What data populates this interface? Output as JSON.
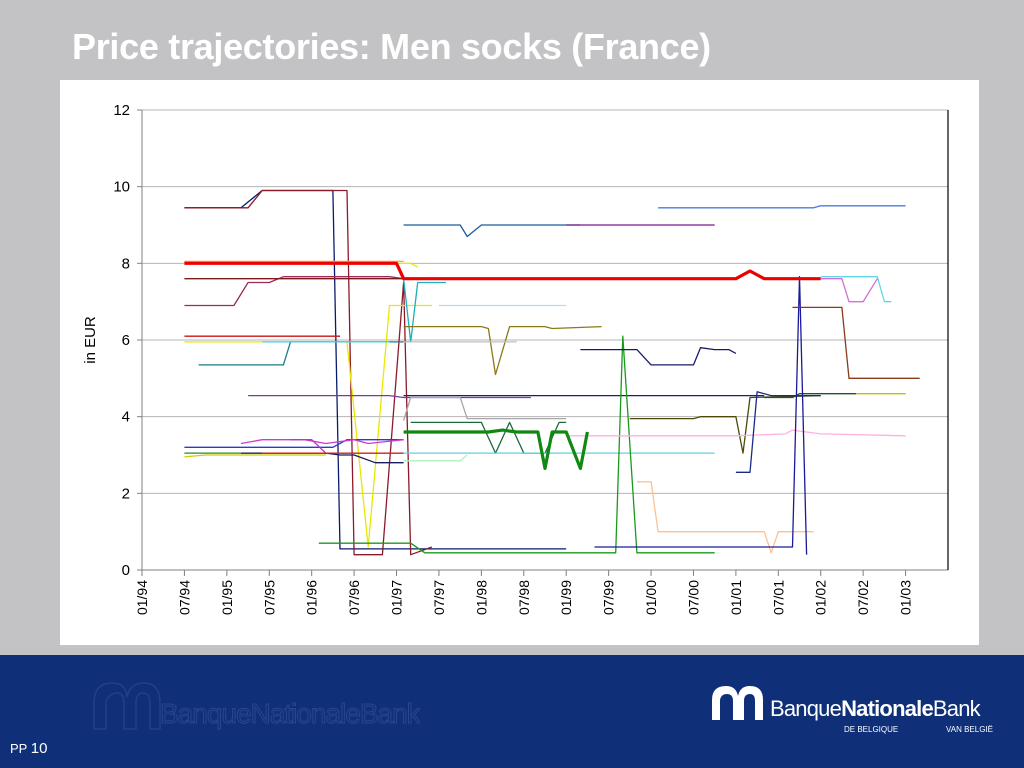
{
  "slide": {
    "title": "Price trajectories: Men socks (France)",
    "page_prefix": "PP",
    "page_number": "10"
  },
  "logo": {
    "word1": "Banque",
    "word2": "Nationale",
    "word3": "Bank",
    "sub_left": "DE BELGIQUE",
    "sub_right": "VAN BELGIË"
  },
  "chart_data": {
    "type": "line",
    "xlabel": "",
    "ylabel": "in EUR",
    "ylim": [
      0,
      12
    ],
    "yticks": [
      0,
      2,
      4,
      6,
      8,
      10,
      12
    ],
    "xlim": [
      "1994-01",
      "2003-07"
    ],
    "xticks": [
      "01/94",
      "07/94",
      "01/95",
      "07/95",
      "01/96",
      "07/96",
      "01/97",
      "07/97",
      "01/98",
      "07/98",
      "01/99",
      "07/99",
      "01/00",
      "07/00",
      "01/01",
      "07/01",
      "01/02",
      "07/02",
      "01/03"
    ],
    "grid": "horizontal",
    "legend": "none",
    "series": [
      {
        "color": "#0a1a6e",
        "width": 1.3,
        "points": [
          [
            "1994-07",
            9.45
          ],
          [
            "1995-03",
            9.45
          ],
          [
            "1995-06",
            9.9
          ],
          [
            "1996-04",
            9.9
          ],
          [
            "1996-05",
            0.55
          ],
          [
            "1999-01",
            0.55
          ]
        ]
      },
      {
        "color": "#8b1a2a",
        "width": 1.3,
        "points": [
          [
            "1994-07",
            9.45
          ],
          [
            "1995-04",
            9.45
          ],
          [
            "1995-06",
            9.9
          ],
          [
            "1996-06",
            9.9
          ],
          [
            "1996-07",
            0.4
          ],
          [
            "1996-11",
            0.4
          ],
          [
            "1997-02",
            7.5
          ],
          [
            "1997-03",
            0.4
          ],
          [
            "1997-06",
            0.6
          ]
        ]
      },
      {
        "color": "#9b2a5a",
        "width": 1.3,
        "points": [
          [
            "1994-07",
            6.9
          ],
          [
            "1995-02",
            6.9
          ],
          [
            "1995-04",
            7.5
          ],
          [
            "1995-07",
            7.5
          ],
          [
            "1995-09",
            7.65
          ],
          [
            "1996-12",
            7.65
          ],
          [
            "1997-02",
            7.6
          ]
        ]
      },
      {
        "color": "#7a1a1a",
        "width": 1.3,
        "points": [
          [
            "1994-07",
            7.6
          ],
          [
            "1997-03",
            7.6
          ]
        ]
      },
      {
        "color": "#e9e900",
        "width": 1.3,
        "points": [
          [
            "1994-07",
            8.0
          ],
          [
            "1997-03",
            8.0
          ],
          [
            "1997-04",
            7.9
          ]
        ]
      },
      {
        "color": "#ffa040",
        "width": 1.3,
        "points": [
          [
            "1994-07",
            8.05
          ],
          [
            "1997-02",
            8.05
          ]
        ]
      },
      {
        "color": "#cc1515",
        "width": 1.3,
        "points": [
          [
            "1994-07",
            6.1
          ],
          [
            "1996-05",
            6.1
          ]
        ]
      },
      {
        "color": "#e9e900",
        "width": 1.3,
        "points": [
          [
            "1994-07",
            5.95
          ],
          [
            "1996-06",
            5.95
          ],
          [
            "1996-09",
            0.6
          ],
          [
            "1996-12",
            6.9
          ],
          [
            "1997-06",
            6.9
          ]
        ]
      },
      {
        "color": "#1a7a8a",
        "width": 1.3,
        "points": [
          [
            "1994-09",
            5.35
          ],
          [
            "1995-09",
            5.35
          ],
          [
            "1995-10",
            5.95
          ],
          [
            "1997-03",
            5.95
          ]
        ]
      },
      {
        "color": "#4ad0e0",
        "width": 1.3,
        "points": [
          [
            "1995-06",
            5.95
          ],
          [
            "1996-12",
            5.95
          ]
        ]
      },
      {
        "color": "#2a3ad0",
        "width": 1.3,
        "points": [
          [
            "1994-07",
            3.2
          ],
          [
            "1996-04",
            3.2
          ],
          [
            "1996-06",
            3.4
          ],
          [
            "1997-02",
            3.4
          ]
        ]
      },
      {
        "color": "#cc3ad0",
        "width": 1.3,
        "points": [
          [
            "1995-03",
            3.3
          ],
          [
            "1995-06",
            3.4
          ],
          [
            "1995-12",
            3.4
          ],
          [
            "1996-03",
            3.3
          ],
          [
            "1996-07",
            3.4
          ],
          [
            "1996-09",
            3.3
          ],
          [
            "1997-02",
            3.4
          ]
        ]
      },
      {
        "color": "#bb33cc",
        "width": 1.3,
        "points": [
          [
            "1995-10",
            3.4
          ],
          [
            "1996-01",
            3.4
          ],
          [
            "1996-03",
            3.05
          ]
        ]
      },
      {
        "color": "#cfcf00",
        "width": 1.3,
        "points": [
          [
            "1994-07",
            2.95
          ],
          [
            "1994-10",
            3.0
          ],
          [
            "1996-03",
            3.0
          ]
        ]
      },
      {
        "color": "#2a8a2a",
        "width": 1.3,
        "points": [
          [
            "1994-07",
            3.05
          ],
          [
            "1997-02",
            3.05
          ]
        ]
      },
      {
        "color": "#1a1a5a",
        "width": 1.3,
        "points": [
          [
            "1995-03",
            3.05
          ],
          [
            "1996-03",
            3.05
          ],
          [
            "1996-05",
            3.0
          ],
          [
            "1996-07",
            3.0
          ],
          [
            "1996-10",
            2.8
          ],
          [
            "1997-02",
            2.8
          ]
        ]
      },
      {
        "color": "#cc2222",
        "width": 1.3,
        "points": [
          [
            "1995-06",
            3.05
          ],
          [
            "1997-02",
            3.05
          ]
        ]
      },
      {
        "color": "#7a3a9a",
        "width": 1.3,
        "points": [
          [
            "1995-04",
            4.55
          ],
          [
            "1996-12",
            4.55
          ],
          [
            "1997-02",
            4.5
          ],
          [
            "1998-08",
            4.5
          ]
        ]
      },
      {
        "color": "#a8a8a8",
        "width": 1.3,
        "points": [
          [
            "1997-02",
            3.9
          ],
          [
            "1997-03",
            4.5
          ],
          [
            "1997-10",
            4.5
          ],
          [
            "1997-11",
            3.95
          ],
          [
            "1999-01",
            3.95
          ]
        ]
      },
      {
        "color": "#1a1a8a",
        "width": 1.3,
        "points": [
          [
            "1997-02",
            4.55
          ],
          [
            "2000-12",
            4.55
          ],
          [
            "2001-02",
            4.55
          ],
          [
            "2001-05",
            4.55
          ]
        ]
      },
      {
        "color": "#1a5aa0",
        "width": 1.3,
        "points": [
          [
            "1997-02",
            9.0
          ],
          [
            "1997-10",
            9.0
          ],
          [
            "1997-11",
            8.7
          ],
          [
            "1998-01",
            9.0
          ],
          [
            "1999-03",
            9.0
          ]
        ]
      },
      {
        "color": "#7a1a8a",
        "width": 1.3,
        "points": [
          [
            "1999-01",
            9.0
          ],
          [
            "2000-10",
            9.0
          ]
        ]
      },
      {
        "color": "#4a7ae0",
        "width": 1.3,
        "points": [
          [
            "2000-02",
            9.45
          ],
          [
            "2001-12",
            9.45
          ],
          [
            "2002-01",
            9.5
          ],
          [
            "2003-01",
            9.5
          ]
        ]
      },
      {
        "color": "#1ab0c0",
        "width": 1.3,
        "points": [
          [
            "1997-02",
            7.6
          ],
          [
            "1997-03",
            5.95
          ],
          [
            "1997-04",
            7.5
          ],
          [
            "1997-08",
            7.5
          ]
        ]
      },
      {
        "color": "#b0e0f0",
        "width": 1.3,
        "points": [
          [
            "1997-07",
            6.9
          ],
          [
            "1998-06",
            6.9
          ],
          [
            "1999-01",
            6.9
          ]
        ]
      },
      {
        "color": "#8a7a1a",
        "width": 1.3,
        "points": [
          [
            "1997-02",
            6.35
          ],
          [
            "1998-01",
            6.35
          ],
          [
            "1998-02",
            6.3
          ],
          [
            "1998-03",
            5.1
          ],
          [
            "1998-05",
            6.35
          ],
          [
            "1998-10",
            6.35
          ],
          [
            "1998-11",
            6.3
          ],
          [
            "1999-06",
            6.35
          ]
        ]
      },
      {
        "color": "#c0c0c0",
        "width": 1.3,
        "points": [
          [
            "1997-02",
            5.95
          ],
          [
            "1998-06",
            5.95
          ]
        ]
      },
      {
        "color": "#1a6a3a",
        "width": 1.3,
        "points": [
          [
            "1997-03",
            3.85
          ],
          [
            "1998-01",
            3.85
          ],
          [
            "1998-03",
            3.05
          ],
          [
            "1998-05",
            3.85
          ],
          [
            "1998-07",
            3.05
          ],
          [
            "1998-10",
            3.05
          ],
          [
            "1998-12",
            3.85
          ],
          [
            "1999-01",
            3.85
          ]
        ]
      },
      {
        "color": "#60d0e0",
        "width": 1.3,
        "points": [
          [
            "1997-02",
            3.05
          ],
          [
            "2000-10",
            3.05
          ]
        ]
      },
      {
        "color": "#b0f0c0",
        "width": 1.3,
        "points": [
          [
            "1997-02",
            2.85
          ],
          [
            "1997-10",
            2.85
          ],
          [
            "1997-11",
            3.0
          ]
        ]
      },
      {
        "color": "#1a9a1a",
        "width": 1.3,
        "points": [
          [
            "1996-02",
            0.7
          ],
          [
            "1997-03",
            0.7
          ],
          [
            "1997-05",
            0.45
          ],
          [
            "1999-08",
            0.45
          ],
          [
            "1999-09",
            6.1
          ],
          [
            "1999-11",
            0.45
          ],
          [
            "2000-10",
            0.45
          ]
        ]
      },
      {
        "color": "#1a1a6a",
        "width": 1.3,
        "points": [
          [
            "1999-03",
            5.75
          ],
          [
            "1999-11",
            5.75
          ],
          [
            "2000-01",
            5.35
          ],
          [
            "2000-07",
            5.35
          ],
          [
            "2000-08",
            5.8
          ],
          [
            "2000-10",
            5.75
          ],
          [
            "2000-12",
            5.75
          ],
          [
            "2001-01",
            5.65
          ]
        ]
      },
      {
        "color": "#4a4a0a",
        "width": 1.3,
        "points": [
          [
            "1999-10",
            3.95
          ],
          [
            "2000-07",
            3.95
          ],
          [
            "2000-08",
            4.0
          ],
          [
            "2001-01",
            4.0
          ],
          [
            "2001-02",
            3.05
          ],
          [
            "2001-03",
            4.5
          ],
          [
            "2002-01",
            4.55
          ]
        ]
      },
      {
        "color": "#1a5a1a",
        "width": 1.3,
        "points": [
          [
            "2001-05",
            4.5
          ],
          [
            "2001-09",
            4.5
          ],
          [
            "2001-10",
            4.6
          ],
          [
            "2002-06",
            4.6
          ]
        ]
      },
      {
        "color": "#c0c000",
        "width": 1.3,
        "points": [
          [
            "2002-06",
            4.6
          ],
          [
            "2003-01",
            4.6
          ]
        ]
      },
      {
        "color": "#ffb0e0",
        "width": 1.3,
        "points": [
          [
            "1999-01",
            3.5
          ],
          [
            "2000-06",
            3.5
          ],
          [
            "2001-01",
            3.5
          ],
          [
            "2001-08",
            3.55
          ],
          [
            "2001-09",
            3.65
          ],
          [
            "2002-01",
            3.55
          ],
          [
            "2003-01",
            3.5
          ]
        ]
      },
      {
        "color": "#ffc090",
        "width": 1.3,
        "points": [
          [
            "1999-11",
            2.3
          ],
          [
            "2000-01",
            2.3
          ],
          [
            "2000-02",
            1.0
          ],
          [
            "2000-11",
            1.0
          ],
          [
            "2001-05",
            1.0
          ],
          [
            "2001-06",
            0.45
          ],
          [
            "2001-07",
            1.0
          ],
          [
            "2001-12",
            1.0
          ]
        ]
      },
      {
        "color": "#1a1a9a",
        "width": 1.3,
        "points": [
          [
            "1999-05",
            0.6
          ],
          [
            "2001-01",
            0.6
          ],
          [
            "2001-09",
            0.6
          ],
          [
            "2001-10",
            7.65
          ],
          [
            "2001-11",
            0.4
          ]
        ]
      },
      {
        "color": "#1a2a8a",
        "width": 1.3,
        "points": [
          [
            "2001-01",
            2.55
          ],
          [
            "2001-03",
            2.55
          ],
          [
            "2001-04",
            4.65
          ],
          [
            "2001-06",
            4.55
          ],
          [
            "2002-01",
            4.55
          ]
        ]
      },
      {
        "color": "#8a3a1a",
        "width": 1.3,
        "points": [
          [
            "2001-09",
            6.85
          ],
          [
            "2002-04",
            6.85
          ],
          [
            "2002-05",
            5.0
          ],
          [
            "2003-03",
            5.0
          ]
        ]
      },
      {
        "color": "#60d8e8",
        "width": 1.3,
        "points": [
          [
            "2002-01",
            7.65
          ],
          [
            "2002-09",
            7.65
          ],
          [
            "2002-10",
            7.0
          ],
          [
            "2002-11",
            7.0
          ]
        ]
      },
      {
        "color": "#d070d8",
        "width": 1.3,
        "points": [
          [
            "2002-01",
            7.6
          ],
          [
            "2002-04",
            7.6
          ],
          [
            "2002-05",
            7.0
          ],
          [
            "2002-07",
            7.0
          ],
          [
            "2002-09",
            7.6
          ]
        ]
      },
      {
        "color": "#ee0000",
        "width": 3.2,
        "points": [
          [
            "1994-07",
            8.0
          ],
          [
            "1997-01",
            8.0
          ],
          [
            "1997-02",
            7.6
          ],
          [
            "2000-10",
            7.6
          ],
          [
            "2001-01",
            7.6
          ],
          [
            "2001-03",
            7.8
          ],
          [
            "2001-05",
            7.6
          ],
          [
            "2002-01",
            7.6
          ]
        ]
      },
      {
        "color": "#118811",
        "width": 3.2,
        "points": [
          [
            "1997-02",
            3.6
          ],
          [
            "1998-02",
            3.6
          ],
          [
            "1998-04",
            3.65
          ],
          [
            "1998-06",
            3.6
          ],
          [
            "1998-09",
            3.6
          ],
          [
            "1998-10",
            2.65
          ],
          [
            "1998-11",
            3.6
          ],
          [
            "1999-01",
            3.6
          ],
          [
            "1999-03",
            2.65
          ],
          [
            "1999-04",
            3.6
          ]
        ]
      }
    ]
  }
}
